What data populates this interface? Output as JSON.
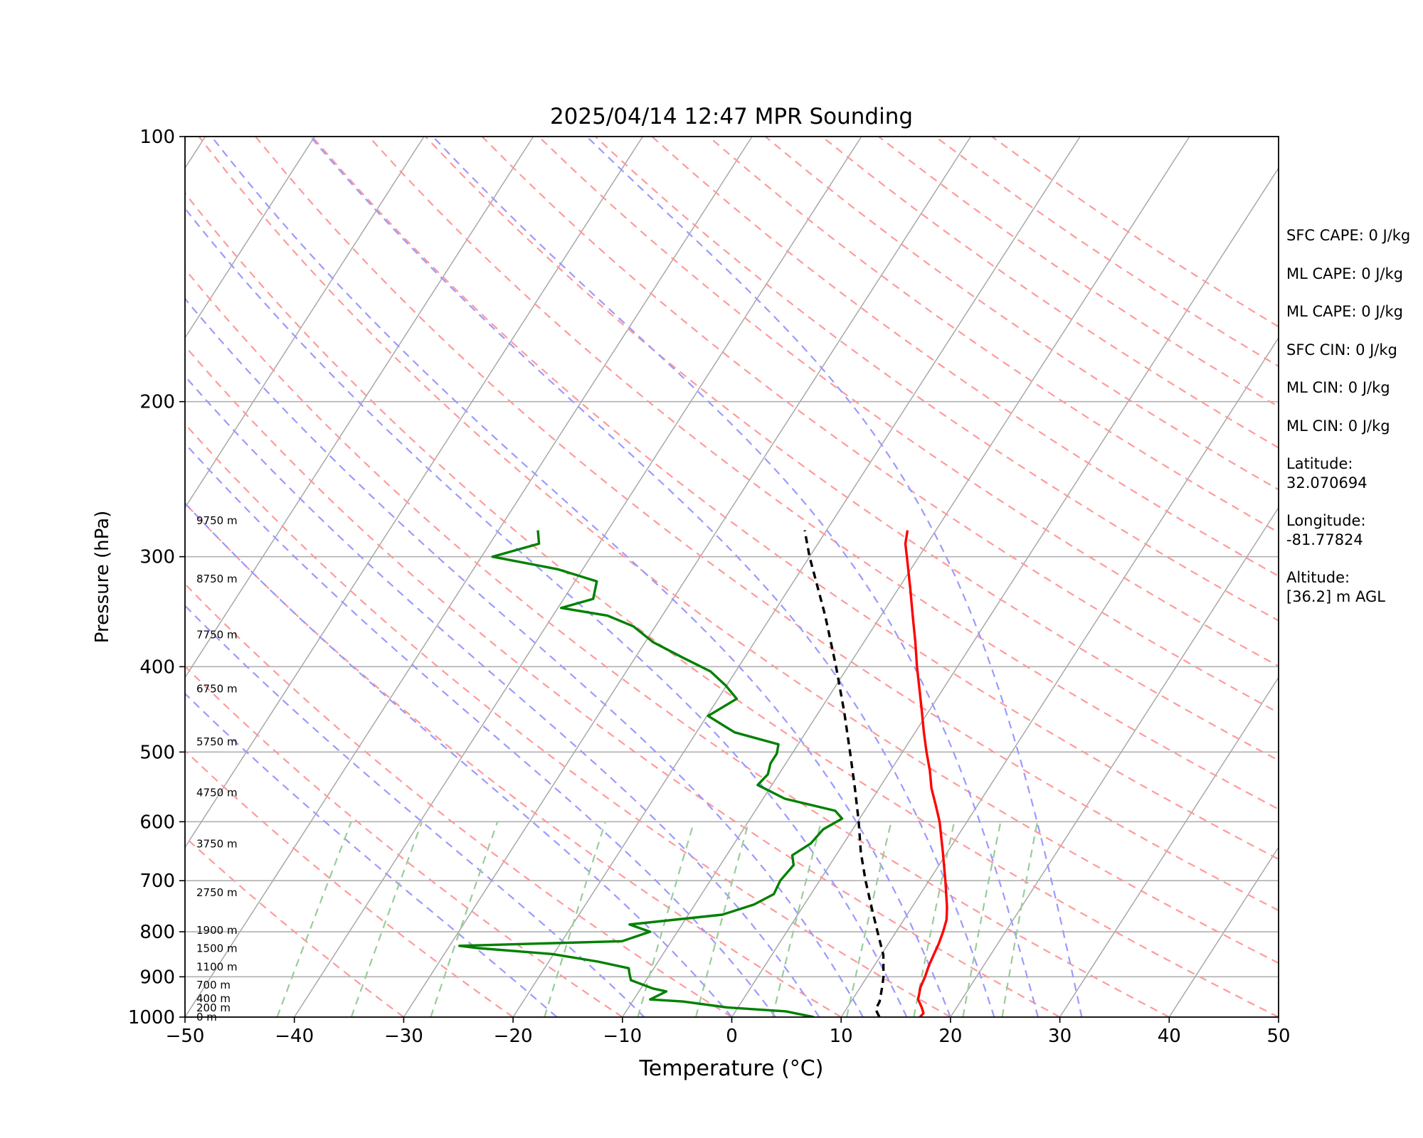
{
  "chart_data": {
    "type": "line",
    "title": "2025/04/14 12:47 MPR Sounding",
    "xlabel": "Temperature (°C)",
    "ylabel": "Pressure (hPa)",
    "xlim": [
      -50,
      50
    ],
    "ylim": [
      1000,
      100
    ],
    "y_scale": "log",
    "x_ticks": [
      "−50",
      "−40",
      "−30",
      "−20",
      "−10",
      "0",
      "10",
      "20",
      "30",
      "40",
      "50"
    ],
    "y_ticks": [
      "1000",
      "900",
      "800",
      "700",
      "600",
      "500",
      "400",
      "300",
      "200",
      "100"
    ],
    "grid": true,
    "series": [
      {
        "color": "#ff0000",
        "points": [
          [
            1000,
            17.2
          ],
          [
            990,
            17.3
          ],
          [
            975,
            16.8
          ],
          [
            955,
            16.0
          ],
          [
            925,
            15.5
          ],
          [
            900,
            15.3
          ],
          [
            875,
            15.0
          ],
          [
            850,
            14.8
          ],
          [
            825,
            14.6
          ],
          [
            800,
            14.3
          ],
          [
            775,
            13.9
          ],
          [
            750,
            13.2
          ],
          [
            700,
            11.5
          ],
          [
            650,
            9.6
          ],
          [
            600,
            7.5
          ],
          [
            575,
            6.2
          ],
          [
            550,
            4.8
          ],
          [
            525,
            3.6
          ],
          [
            500,
            2.2
          ],
          [
            475,
            0.8
          ],
          [
            450,
            -0.6
          ],
          [
            425,
            -2.1
          ],
          [
            400,
            -3.7
          ],
          [
            375,
            -5.3
          ],
          [
            350,
            -7.1
          ],
          [
            325,
            -9.0
          ],
          [
            300,
            -11.1
          ],
          [
            290,
            -12.0
          ],
          [
            280,
            -12.6
          ]
        ]
      },
      {
        "color": "#008000",
        "points": [
          [
            1000,
            7.5
          ],
          [
            985,
            4.6
          ],
          [
            975,
            -1.0
          ],
          [
            960,
            -5.4
          ],
          [
            955,
            -8.5
          ],
          [
            935,
            -7.5
          ],
          [
            928,
            -8.9
          ],
          [
            908,
            -11.4
          ],
          [
            890,
            -12.0
          ],
          [
            880,
            -12.3
          ],
          [
            865,
            -15.5
          ],
          [
            848,
            -20.1
          ],
          [
            835,
            -27.3
          ],
          [
            830,
            -29.1
          ],
          [
            820,
            -14.5
          ],
          [
            800,
            -12.5
          ],
          [
            785,
            -14.8
          ],
          [
            765,
            -6.9
          ],
          [
            745,
            -4.6
          ],
          [
            725,
            -3.4
          ],
          [
            700,
            -3.6
          ],
          [
            672,
            -3.3
          ],
          [
            655,
            -4.0
          ],
          [
            635,
            -3.0
          ],
          [
            612,
            -2.7
          ],
          [
            595,
            -1.6
          ],
          [
            583,
            -2.7
          ],
          [
            565,
            -8.0
          ],
          [
            545,
            -11.3
          ],
          [
            530,
            -11.0
          ],
          [
            515,
            -11.4
          ],
          [
            502,
            -11.4
          ],
          [
            490,
            -11.8
          ],
          [
            475,
            -16.5
          ],
          [
            455,
            -19.9
          ],
          [
            435,
            -18.3
          ],
          [
            420,
            -20.1
          ],
          [
            405,
            -22.3
          ],
          [
            390,
            -25.8
          ],
          [
            375,
            -29.3
          ],
          [
            360,
            -32.0
          ],
          [
            350,
            -35.0
          ],
          [
            343,
            -39.7
          ],
          [
            335,
            -37.3
          ],
          [
            320,
            -38.0
          ],
          [
            310,
            -42.3
          ],
          [
            300,
            -49.0
          ],
          [
            290,
            -45.5
          ],
          [
            280,
            -46.4
          ]
        ]
      },
      {
        "color": "#000000",
        "dashed": true,
        "points": [
          [
            1000,
            13.5
          ],
          [
            980,
            12.7
          ],
          [
            960,
            12.6
          ],
          [
            920,
            11.9
          ],
          [
            900,
            11.5
          ],
          [
            850,
            10.2
          ],
          [
            800,
            8.3
          ],
          [
            750,
            6.3
          ],
          [
            700,
            4.2
          ],
          [
            650,
            2.1
          ],
          [
            600,
            0.1
          ],
          [
            550,
            -2.2
          ],
          [
            500,
            -4.8
          ],
          [
            450,
            -7.7
          ],
          [
            400,
            -11.1
          ],
          [
            350,
            -15.1
          ],
          [
            300,
            -20.0
          ],
          [
            280,
            -22.0
          ]
        ]
      }
    ],
    "height_labels": [
      {
        "p": 1000,
        "text": "0 m"
      },
      {
        "p": 976,
        "text": "200 m"
      },
      {
        "p": 953,
        "text": "400 m"
      },
      {
        "p": 920,
        "text": "700 m"
      },
      {
        "p": 877,
        "text": "1100 m"
      },
      {
        "p": 836,
        "text": "1500 m"
      },
      {
        "p": 797,
        "text": "1900 m"
      },
      {
        "p": 722,
        "text": "2750 m"
      },
      {
        "p": 636,
        "text": "3750 m"
      },
      {
        "p": 556,
        "text": "4750 m"
      },
      {
        "p": 487,
        "text": "5750 m"
      },
      {
        "p": 424,
        "text": "6750 m"
      },
      {
        "p": 368,
        "text": "7750 m"
      },
      {
        "p": 318,
        "text": "8750 m"
      },
      {
        "p": 273,
        "text": "9750 m"
      }
    ]
  },
  "stats": [
    "SFC CAPE: 0 J/kg",
    "ML CAPE: 0 J/kg",
    "ML CAPE: 0 J/kg",
    "SFC CIN: 0 J/kg",
    "ML CIN: 0 J/kg",
    "ML CIN: 0 J/kg"
  ],
  "location": {
    "latitude_label": "Latitude:",
    "latitude": "32.070694",
    "longitude_label": "Longitude:",
    "longitude": "-81.77824",
    "altitude_label": "Altitude:",
    "altitude": "[36.2] m AGL"
  },
  "colors": {
    "isobar": "#b0b0b0",
    "isotherm": "#a8a8a8",
    "dry_adiabat": "#ff9a9a",
    "moist_adiabat": "#9a9aff",
    "mixing_ratio": "#99cc99"
  }
}
